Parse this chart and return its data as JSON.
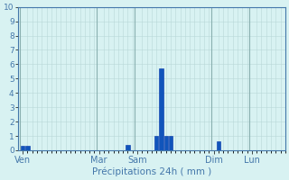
{
  "xlabel": "Précipitations 24h ( mm )",
  "bg_color": "#d8f2f2",
  "bar_color": "#1155bb",
  "bar_edge_color": "#0033aa",
  "grid_color": "#b8d8d8",
  "grid_major_color": "#8ab0b0",
  "axis_color": "#4477aa",
  "tick_label_color": "#4477aa",
  "xlabel_color": "#4477aa",
  "ylim": [
    0,
    10
  ],
  "yticks": [
    0,
    1,
    2,
    3,
    4,
    5,
    6,
    7,
    8,
    9,
    10
  ],
  "n_bars": 56,
  "bar_width": 0.8,
  "day_labels": [
    "Ven",
    "Mar",
    "Sam",
    "Dim",
    "Lun"
  ],
  "day_tick_positions": [
    0,
    16,
    24,
    40,
    48
  ],
  "day_line_positions": [
    0,
    16,
    24,
    40,
    48
  ],
  "bar_values": [
    0.3,
    0.3,
    0,
    0,
    0,
    0,
    0,
    0,
    0,
    0,
    0,
    0,
    0,
    0,
    0,
    0,
    0,
    0,
    0,
    0,
    0,
    0,
    0.4,
    0,
    0,
    0,
    0,
    0,
    1.0,
    5.7,
    1.0,
    1.0,
    0,
    0,
    0,
    0,
    0,
    0,
    0,
    0,
    0,
    0.6,
    0,
    0,
    0,
    0,
    0,
    0,
    0,
    0,
    0,
    0,
    0,
    0,
    0,
    0
  ]
}
